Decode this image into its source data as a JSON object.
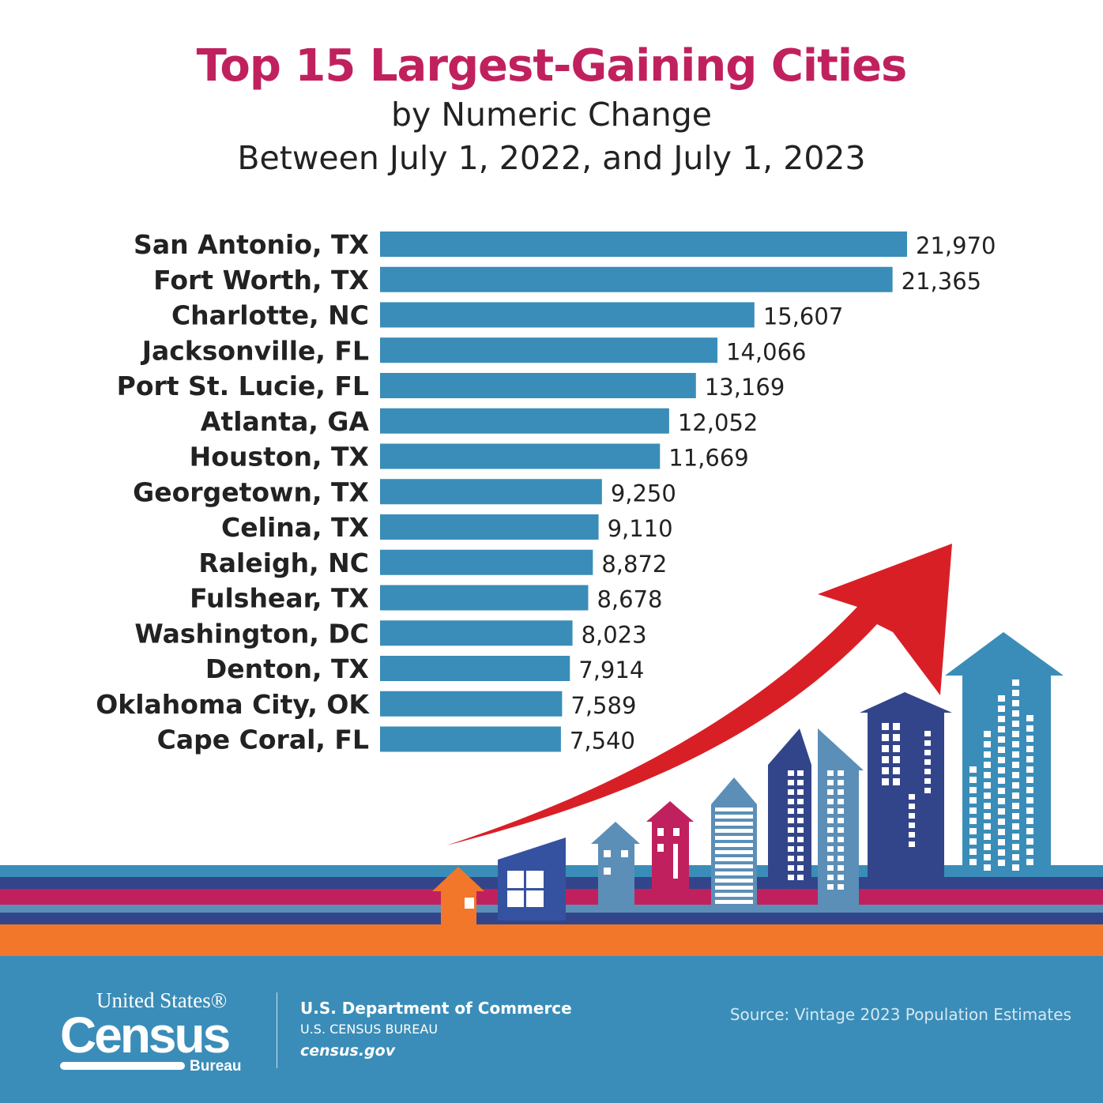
{
  "chart_data": {
    "type": "bar",
    "orientation": "horizontal",
    "title": "Top 15 Largest-Gaining Cities",
    "subtitle": [
      "by Numeric Change",
      "Between July 1, 2022, and July 1, 2023"
    ],
    "categories": [
      "San Antonio, TX",
      "Fort Worth, TX",
      "Charlotte, NC",
      "Jacksonville, FL",
      "Port St. Lucie, FL",
      "Atlanta, GA",
      "Houston, TX",
      "Georgetown, TX",
      "Celina, TX",
      "Raleigh, NC",
      "Fulshear, TX",
      "Washington, DC",
      "Denton, TX",
      "Oklahoma City, OK",
      "Cape Coral, FL"
    ],
    "values": [
      21970,
      21365,
      15607,
      14066,
      13169,
      12052,
      11669,
      9250,
      9110,
      8872,
      8678,
      8023,
      7914,
      7589,
      7540
    ],
    "value_labels": [
      "21,970",
      "21,365",
      "15,607",
      "14,066",
      "13,169",
      "12,052",
      "11,669",
      "9,250",
      "9,110",
      "8,872",
      "8,678",
      "8,023",
      "7,914",
      "7,589",
      "7,540"
    ],
    "xlim": [
      0,
      22000
    ],
    "grid": false,
    "bar_color": "#3a8db8",
    "title_color": "#c0215e"
  },
  "footer": {
    "logo": {
      "line1": "United States®",
      "line2": "Census",
      "line3": "Bureau"
    },
    "department": "U.S. Department of Commerce",
    "bureau": "U.S. CENSUS BUREAU",
    "website": "census.gov",
    "source": "Source: Vintage 2023 Population Estimates"
  },
  "colors": {
    "teal": "#3a8db8",
    "navy": "#33458a",
    "magenta": "#c0215e",
    "steel": "#5b8fb8",
    "orange": "#f2772a",
    "arrow_red": "#d91f26"
  }
}
